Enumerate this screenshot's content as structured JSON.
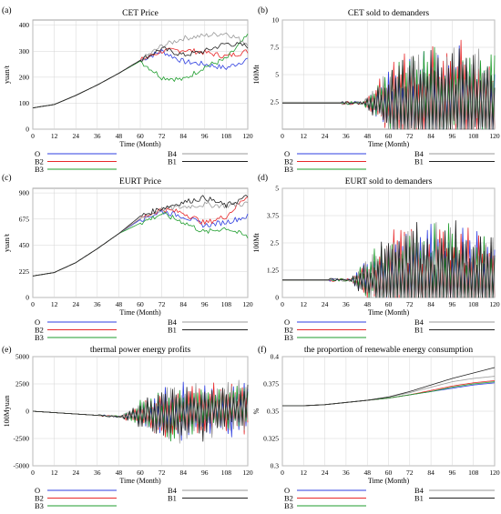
{
  "figure": {
    "panels": [
      {
        "letter": "(a)",
        "title": "CET Price",
        "xlabel": "Time (Month)",
        "ylabel": "yuan/t"
      },
      {
        "letter": "(b)",
        "title": "CET sold to demanders",
        "xlabel": "Time (Month)",
        "ylabel": "100Mt"
      },
      {
        "letter": "(c)",
        "title": "EURT Price",
        "xlabel": "Time (Month)",
        "ylabel": "yuan/t"
      },
      {
        "letter": "(d)",
        "title": "EURT sold to demanders",
        "xlabel": "Time (Month)",
        "ylabel": "100Mt"
      },
      {
        "letter": "(e)",
        "title": "thermal power energy profits",
        "xlabel": "Time (Month)",
        "ylabel": "100Myuan"
      },
      {
        "letter": "(f)",
        "title": "the proportion of renewable energy consumption",
        "xlabel": "Time (Month)",
        "ylabel": "%"
      }
    ],
    "legend": [
      {
        "name": "O",
        "color": "#2f3fe0"
      },
      {
        "name": "B2",
        "color": "#e8282a"
      },
      {
        "name": "B3",
        "color": "#1f9e2e"
      },
      {
        "name": "B4",
        "color": "#9a9a9a"
      },
      {
        "name": "B1",
        "color": "#222222"
      }
    ]
  },
  "chart_data": [
    {
      "type": "line",
      "title": "CET Price",
      "xlabel": "Time (Month)",
      "ylabel": "yuan/t",
      "xlim": [
        0,
        120
      ],
      "ylim": [
        0,
        420
      ],
      "xticks": [
        "0",
        "12",
        "24",
        "36",
        "48",
        "60",
        "72",
        "84",
        "96",
        "108",
        "120"
      ],
      "yticks": [
        "0",
        "100",
        "200",
        "300",
        "400"
      ],
      "x": [
        0,
        12,
        24,
        36,
        48,
        60,
        72,
        84,
        96,
        108,
        120
      ],
      "series": [
        {
          "name": "O",
          "values": [
            82,
            95,
            130,
            170,
            215,
            265,
            300,
            260,
            250,
            235,
            270
          ]
        },
        {
          "name": "B2",
          "values": [
            82,
            95,
            130,
            170,
            215,
            265,
            300,
            305,
            295,
            280,
            300
          ]
        },
        {
          "name": "B3",
          "values": [
            82,
            95,
            130,
            170,
            215,
            262,
            200,
            190,
            240,
            270,
            360
          ]
        },
        {
          "name": "B4",
          "values": [
            82,
            95,
            130,
            170,
            215,
            265,
            320,
            350,
            360,
            370,
            330
          ]
        },
        {
          "name": "B1",
          "values": [
            82,
            95,
            130,
            170,
            215,
            265,
            310,
            285,
            300,
            330,
            320
          ]
        }
      ]
    },
    {
      "type": "line",
      "title": "CET sold to demanders",
      "xlabel": "Time (Month)",
      "ylabel": "100Mt",
      "xlim": [
        0,
        120
      ],
      "ylim": [
        0,
        10
      ],
      "xticks": [
        "0",
        "12",
        "24",
        "36",
        "48",
        "60",
        "72",
        "84",
        "96",
        "108",
        "120"
      ],
      "yticks": [
        "2.5",
        "5",
        "7.5",
        "10"
      ],
      "oscillating": true,
      "baseline": 2.4,
      "oscillation_start": 45,
      "amplitude_max": 6,
      "series": [
        {
          "name": "O"
        },
        {
          "name": "B2"
        },
        {
          "name": "B3"
        },
        {
          "name": "B4"
        },
        {
          "name": "B1"
        }
      ]
    },
    {
      "type": "line",
      "title": "EURT Price",
      "xlabel": "Time (Month)",
      "ylabel": "yuan/t",
      "xlim": [
        0,
        120
      ],
      "ylim": [
        0,
        940
      ],
      "xticks": [
        "0",
        "12",
        "24",
        "36",
        "48",
        "60",
        "72",
        "84",
        "96",
        "108",
        "120"
      ],
      "yticks": [
        "0",
        "225",
        "450",
        "675",
        "900"
      ],
      "x": [
        0,
        12,
        24,
        36,
        48,
        60,
        72,
        84,
        96,
        108,
        120
      ],
      "series": [
        {
          "name": "O",
          "values": [
            185,
            215,
            300,
            420,
            550,
            670,
            740,
            700,
            620,
            650,
            700
          ]
        },
        {
          "name": "B2",
          "values": [
            185,
            215,
            300,
            420,
            550,
            680,
            760,
            730,
            640,
            700,
            880
          ]
        },
        {
          "name": "B3",
          "values": [
            185,
            215,
            300,
            420,
            550,
            640,
            720,
            650,
            560,
            600,
            520
          ]
        },
        {
          "name": "B4",
          "values": [
            185,
            215,
            300,
            420,
            550,
            680,
            760,
            780,
            800,
            790,
            810
          ]
        },
        {
          "name": "B1",
          "values": [
            185,
            215,
            300,
            420,
            550,
            700,
            770,
            820,
            860,
            790,
            870
          ]
        }
      ]
    },
    {
      "type": "line",
      "title": "EURT sold to demanders",
      "xlabel": "Time (Month)",
      "ylabel": "100Mt",
      "xlim": [
        0,
        120
      ],
      "ylim": [
        0,
        5
      ],
      "xticks": [
        "0",
        "12",
        "24",
        "36",
        "48",
        "60",
        "72",
        "84",
        "96",
        "108",
        "120"
      ],
      "yticks": [
        "0",
        "1.25",
        "2.5",
        "3.75",
        "5"
      ],
      "oscillating": true,
      "baseline": 0.8,
      "oscillation_start": 38,
      "amplitude_max": 3,
      "series": [
        {
          "name": "O"
        },
        {
          "name": "B2"
        },
        {
          "name": "B3"
        },
        {
          "name": "B4"
        },
        {
          "name": "B1"
        }
      ]
    },
    {
      "type": "line",
      "title": "thermal power energy profits",
      "xlabel": "Time (Month)",
      "ylabel": "100Myuan",
      "xlim": [
        0,
        120
      ],
      "ylim": [
        -5000,
        5000
      ],
      "xticks": [
        "0",
        "12",
        "24",
        "36",
        "48",
        "60",
        "72",
        "84",
        "96",
        "108",
        "120"
      ],
      "yticks": [
        "5000",
        "2500",
        "0",
        "-2500",
        "-5000"
      ],
      "oscillating": true,
      "baseline": 0,
      "drift": -1000,
      "oscillation_start": 48,
      "amplitude_max": 3000,
      "series": [
        {
          "name": "O"
        },
        {
          "name": "B2"
        },
        {
          "name": "B3"
        },
        {
          "name": "B4"
        },
        {
          "name": "B1"
        }
      ]
    },
    {
      "type": "line",
      "title": "the proportion of renewable energy consumption",
      "xlabel": "Time (Month)",
      "ylabel": "%",
      "xlim": [
        0,
        120
      ],
      "ylim": [
        0.3,
        0.4
      ],
      "xticks": [
        "0",
        "12",
        "24",
        "36",
        "48",
        "60",
        "72",
        "84",
        "96",
        "108",
        "120"
      ],
      "yticks": [
        "0.4",
        "0.375",
        "0.35",
        "0.325",
        "0.3"
      ],
      "x": [
        0,
        12,
        24,
        36,
        48,
        60,
        72,
        84,
        96,
        108,
        120
      ],
      "series": [
        {
          "name": "O",
          "values": [
            0.355,
            0.355,
            0.356,
            0.358,
            0.36,
            0.362,
            0.365,
            0.368,
            0.371,
            0.374,
            0.376
          ]
        },
        {
          "name": "B2",
          "values": [
            0.355,
            0.355,
            0.356,
            0.358,
            0.36,
            0.362,
            0.365,
            0.369,
            0.373,
            0.376,
            0.378
          ]
        },
        {
          "name": "B3",
          "values": [
            0.355,
            0.355,
            0.356,
            0.358,
            0.36,
            0.362,
            0.365,
            0.368,
            0.372,
            0.375,
            0.377
          ]
        },
        {
          "name": "B4",
          "values": [
            0.355,
            0.355,
            0.356,
            0.358,
            0.36,
            0.363,
            0.367,
            0.372,
            0.377,
            0.38,
            0.382
          ]
        },
        {
          "name": "B1",
          "values": [
            0.355,
            0.355,
            0.356,
            0.358,
            0.36,
            0.363,
            0.368,
            0.374,
            0.38,
            0.385,
            0.39
          ]
        }
      ]
    }
  ]
}
